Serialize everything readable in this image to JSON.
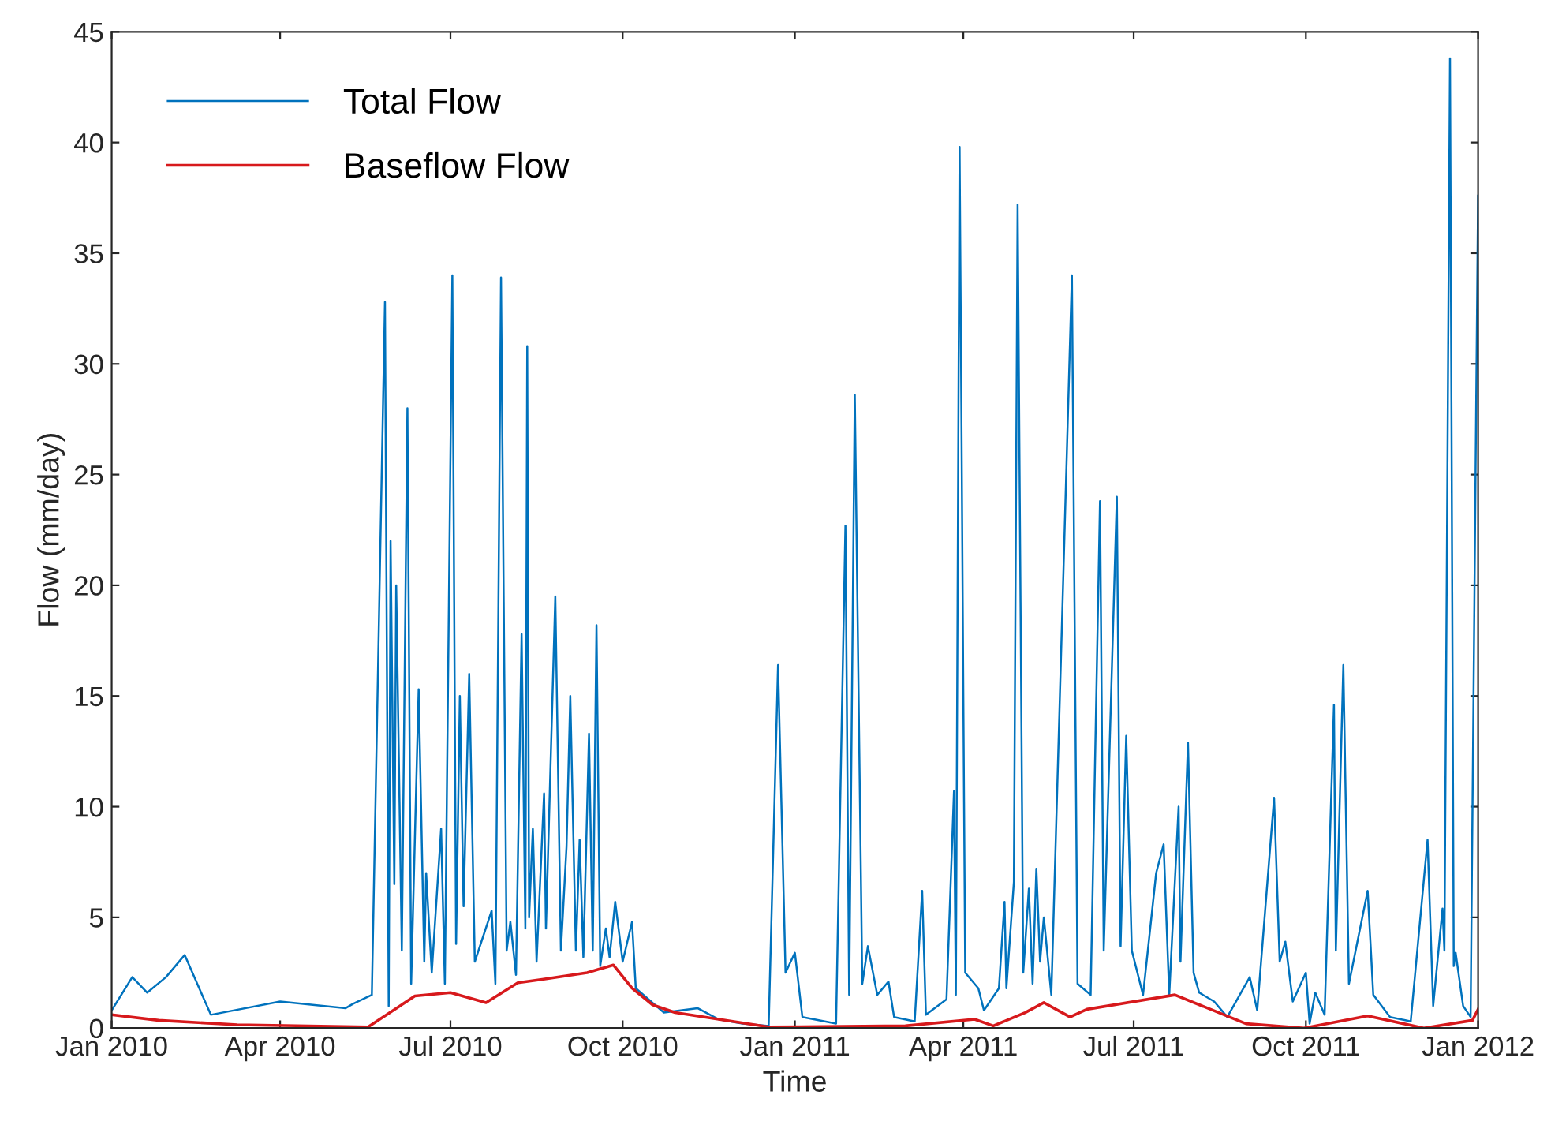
{
  "chart_data": {
    "type": "line",
    "xlabel": "Time",
    "ylabel": "Flow (mm/day)",
    "xlim": [
      "2010-01-01",
      "2012-01-01"
    ],
    "xticks": [
      {
        "value": "2010-01-01",
        "label": "Jan 2010"
      },
      {
        "value": "2010-04-01",
        "label": "Apr 2010"
      },
      {
        "value": "2010-07-01",
        "label": "Jul 2010"
      },
      {
        "value": "2010-10-01",
        "label": "Oct 2010"
      },
      {
        "value": "2011-01-01",
        "label": "Jan 2011"
      },
      {
        "value": "2011-04-01",
        "label": "Apr 2011"
      },
      {
        "value": "2011-07-01",
        "label": "Jul 2011"
      },
      {
        "value": "2011-10-01",
        "label": "Oct 2011"
      },
      {
        "value": "2012-01-01",
        "label": "Jan 2012"
      }
    ],
    "ylim": [
      0,
      45
    ],
    "yticks": [
      0,
      5,
      10,
      15,
      20,
      25,
      30,
      35,
      40,
      45
    ],
    "grid": false,
    "legend": "top left",
    "marker": "none",
    "line_style": "solid",
    "series": [
      {
        "name": "Total Flow",
        "color": "#0072bd",
        "x": [
          "2010-01-01",
          "2010-01-12",
          "2010-01-20",
          "2010-01-30",
          "2010-02-09",
          "2010-02-23",
          "2010-04-01",
          "2010-05-06",
          "2010-05-10",
          "2010-05-20",
          "2010-05-27",
          "2010-05-29",
          "2010-05-30",
          "2010-06-01",
          "2010-06-02",
          "2010-06-05",
          "2010-06-08",
          "2010-06-10",
          "2010-06-14",
          "2010-06-17",
          "2010-06-18",
          "2010-06-21",
          "2010-06-26",
          "2010-06-28",
          "2010-07-02",
          "2010-07-04",
          "2010-07-06",
          "2010-07-08",
          "2010-07-11",
          "2010-07-14",
          "2010-07-23",
          "2010-07-25",
          "2010-07-28",
          "2010-07-31",
          "2010-08-02",
          "2010-08-05",
          "2010-08-08",
          "2010-08-10",
          "2010-08-11",
          "2010-08-12",
          "2010-08-14",
          "2010-08-16",
          "2010-08-20",
          "2010-08-21",
          "2010-08-26",
          "2010-08-29",
          "2010-09-01",
          "2010-09-03",
          "2010-09-06",
          "2010-09-08",
          "2010-09-10",
          "2010-09-13",
          "2010-09-15",
          "2010-09-17",
          "2010-09-19",
          "2010-09-22",
          "2010-09-24",
          "2010-09-27",
          "2010-10-01",
          "2010-10-06",
          "2010-10-08",
          "2010-10-23",
          "2010-11-10",
          "2010-11-21",
          "2010-12-04",
          "2010-12-18",
          "2010-12-23",
          "2010-12-27",
          "2011-01-01",
          "2011-01-05",
          "2011-01-23",
          "2011-01-28",
          "2011-01-30",
          "2011-02-02",
          "2011-02-06",
          "2011-02-09",
          "2011-02-14",
          "2011-02-20",
          "2011-02-23",
          "2011-03-06",
          "2011-03-10",
          "2011-03-12",
          "2011-03-23",
          "2011-03-27",
          "2011-03-28",
          "2011-03-30",
          "2011-04-02",
          "2011-04-09",
          "2011-04-12",
          "2011-04-20",
          "2011-04-23",
          "2011-04-24",
          "2011-04-28",
          "2011-04-30",
          "2011-05-03",
          "2011-05-06",
          "2011-05-08",
          "2011-05-10",
          "2011-05-12",
          "2011-05-14",
          "2011-05-18",
          "2011-05-29",
          "2011-06-01",
          "2011-06-08",
          "2011-06-13",
          "2011-06-15",
          "2011-06-22",
          "2011-06-24",
          "2011-06-27",
          "2011-06-30",
          "2011-07-06",
          "2011-07-13",
          "2011-07-17",
          "2011-07-20",
          "2011-07-25",
          "2011-07-26",
          "2011-07-30",
          "2011-08-02",
          "2011-08-05",
          "2011-08-13",
          "2011-08-20",
          "2011-09-01",
          "2011-09-05",
          "2011-09-14",
          "2011-09-17",
          "2011-09-20",
          "2011-09-24",
          "2011-10-01",
          "2011-10-03",
          "2011-10-06",
          "2011-10-11",
          "2011-10-16",
          "2011-10-17",
          "2011-10-21",
          "2011-10-24",
          "2011-11-03",
          "2011-11-06",
          "2011-11-15",
          "2011-11-26",
          "2011-12-05",
          "2011-12-08",
          "2011-12-13",
          "2011-12-14",
          "2011-12-17",
          "2011-12-19",
          "2011-12-20",
          "2011-12-24",
          "2011-12-28",
          "2012-01-01"
        ],
        "values": [
          0.8,
          2.3,
          1.6,
          2.3,
          3.3,
          0.6,
          1.2,
          0.9,
          1.1,
          1.5,
          32.8,
          1.0,
          22,
          6.5,
          20,
          3.5,
          28,
          2,
          15.3,
          3,
          7,
          2.5,
          9,
          2,
          34,
          3.8,
          15,
          5.5,
          16,
          3,
          5.3,
          2,
          33.9,
          3.5,
          4.8,
          2.4,
          17.8,
          4.5,
          30.8,
          5,
          9,
          3,
          10.6,
          4.5,
          19.5,
          3.5,
          8.2,
          15,
          3.5,
          8.5,
          3.2,
          13.3,
          3.5,
          18.2,
          2.8,
          4.5,
          3.2,
          5.7,
          3,
          4.8,
          1.8,
          0.7,
          0.9,
          0.4,
          0.2,
          0.1,
          16.4,
          2.5,
          3.4,
          0.5,
          0.2,
          22.7,
          1.5,
          28.6,
          2,
          3.7,
          1.5,
          2.1,
          0.5,
          0.3,
          6.2,
          0.6,
          1.3,
          10.7,
          1.5,
          39.8,
          2.5,
          1.8,
          0.8,
          1.8,
          5.7,
          1.8,
          6.6,
          37.2,
          2.5,
          6.3,
          2,
          7.2,
          3,
          5,
          1.5,
          34,
          2,
          1.5,
          23.8,
          3.5,
          24,
          3.7,
          13.2,
          3.5,
          1.5,
          7,
          8.3,
          1.5,
          10,
          3,
          12.9,
          2.5,
          1.6,
          1.2,
          0.5,
          2.3,
          0.8,
          10.4,
          3,
          3.9,
          1.2,
          2.5,
          0.2,
          1.6,
          0.6,
          14.6,
          3.5,
          16.4,
          2,
          6.2,
          1.5,
          0.5,
          0.3,
          8.5,
          1,
          5.4,
          3.5,
          43.8,
          2.8,
          3.4,
          1,
          0.5,
          37.6
        ]
      },
      {
        "name": "Baseflow Flow",
        "color": "#d7191c",
        "x": [
          "2010-01-01",
          "2010-01-26",
          "2010-03-09",
          "2010-05-18",
          "2010-06-12",
          "2010-07-01",
          "2010-07-20",
          "2010-08-06",
          "2010-08-19",
          "2010-09-12",
          "2010-09-26",
          "2010-10-06",
          "2010-10-17",
          "2010-10-29",
          "2010-12-18",
          "2011-03-01",
          "2011-04-07",
          "2011-04-17",
          "2011-05-04",
          "2011-05-14",
          "2011-05-28",
          "2011-06-06",
          "2011-07-23",
          "2011-08-30",
          "2011-09-30",
          "2011-11-03",
          "2011-12-03",
          "2011-12-29",
          "2012-01-01"
        ],
        "values": [
          0.6,
          0.35,
          0.15,
          0.05,
          1.45,
          1.6,
          1.15,
          2.05,
          2.2,
          2.5,
          2.85,
          1.8,
          1.05,
          0.7,
          0.05,
          0.1,
          0.4,
          0.1,
          0.7,
          1.15,
          0.5,
          0.85,
          1.5,
          0.2,
          0,
          0.55,
          0,
          0.35,
          0.85
        ]
      }
    ]
  }
}
